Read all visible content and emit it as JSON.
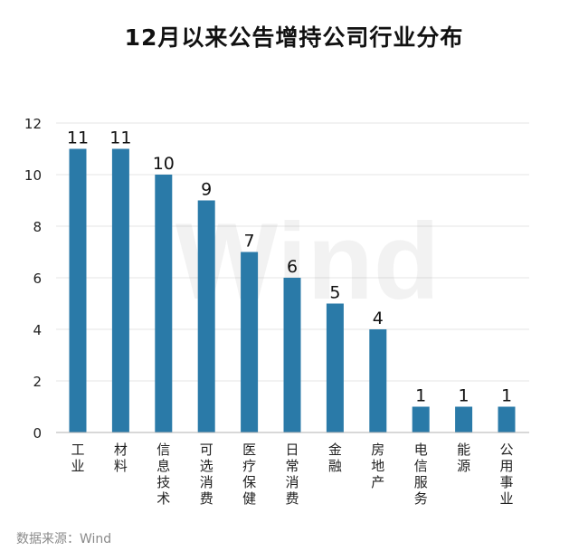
{
  "title": "12月以来公告增持公司行业分布",
  "source": "数据来源：Wind",
  "watermark": "Wind",
  "colors": {
    "bar": "#2a7aa8",
    "grid": "#e6e6e6",
    "axis": "#b0b0b0",
    "text": "#222222"
  },
  "chart_data": {
    "type": "bar",
    "title": "12月以来公告增持公司行业分布",
    "categories": [
      "工业",
      "材料",
      "信息技术",
      "可选消费",
      "医疗保健",
      "日常消费",
      "金融",
      "房地产",
      "电信服务",
      "能源",
      "公用事业"
    ],
    "values": [
      11,
      11,
      10,
      9,
      7,
      6,
      5,
      4,
      1,
      1,
      1
    ],
    "ylim": [
      0,
      12
    ],
    "yticks": [
      0,
      2,
      4,
      6,
      8,
      10,
      12
    ],
    "grid": true,
    "data_labels": true
  }
}
